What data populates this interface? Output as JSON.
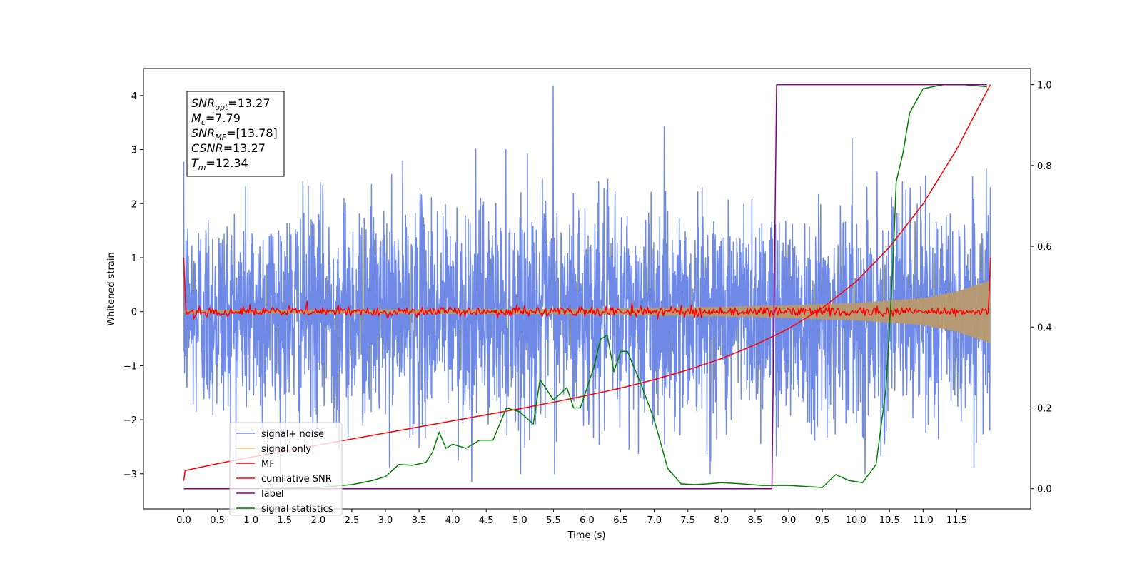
{
  "chart_data": {
    "type": "line",
    "xlabel": "Time (s)",
    "ylabel": "Whitened strain",
    "xlim": [
      -0.6,
      12.6
    ],
    "ylim": [
      -3.65,
      4.5
    ],
    "y2lim": [
      -0.05,
      1.04
    ],
    "x_ticks": [
      0.0,
      0.5,
      1.0,
      1.5,
      2.0,
      2.5,
      3.0,
      3.5,
      4.0,
      4.5,
      5.0,
      5.5,
      6.0,
      6.5,
      7.0,
      7.5,
      8.0,
      8.5,
      9.0,
      9.5,
      10.0,
      10.5,
      11.0,
      11.5
    ],
    "y_ticks": [
      -3,
      -2,
      -1,
      0,
      1,
      2,
      3,
      4
    ],
    "y2_ticks": [
      0.0,
      0.2,
      0.4,
      0.6,
      0.8,
      1.0
    ],
    "legend_position": "lower-left",
    "stats_box": [
      {
        "var": "SNR",
        "sub": "opt",
        "value": "=13.27"
      },
      {
        "var": "M",
        "sub": "c",
        "value": "=7.79"
      },
      {
        "var": "SNR",
        "sub": "MF",
        "value": "=[13.78]"
      },
      {
        "var": "CSNR",
        "sub": "",
        "value": "=13.27"
      },
      {
        "var": "T",
        "sub": "m",
        "value": "=12.34"
      }
    ],
    "series": [
      {
        "name": "signal+ noise",
        "color": "#6f8ae6",
        "axis": "left",
        "kind": "noise",
        "x_range": [
          0.0,
          12.0
        ],
        "std": 1.0,
        "max_peak": 4.18,
        "min_peak": -3.15
      },
      {
        "name": "signal only",
        "color": "#f5c26b",
        "axis": "left",
        "kind": "envelope",
        "x": [
          0.0,
          6.0,
          8.0,
          9.0,
          10.0,
          11.0,
          11.5,
          12.0
        ],
        "upper": [
          0.03,
          0.05,
          0.09,
          0.12,
          0.16,
          0.25,
          0.37,
          0.58
        ]
      },
      {
        "name": "MF",
        "color": "#ff0000",
        "axis": "left",
        "kind": "noise",
        "x_range": [
          0.0,
          12.0
        ],
        "std": 0.045,
        "start_value": 1.0,
        "end_value": 1.0
      },
      {
        "name": "cumilative SNR",
        "color": "#ff0000",
        "axis": "right",
        "x": [
          0.0,
          0.02,
          0.5,
          1.0,
          1.5,
          2.0,
          2.5,
          3.0,
          3.5,
          4.0,
          4.5,
          5.0,
          5.5,
          6.0,
          6.5,
          7.0,
          7.5,
          8.0,
          8.5,
          9.0,
          9.5,
          10.0,
          10.5,
          11.0,
          11.5,
          12.0
        ],
        "values": [
          0.02,
          0.045,
          0.062,
          0.078,
          0.093,
          0.108,
          0.123,
          0.138,
          0.153,
          0.168,
          0.183,
          0.198,
          0.214,
          0.231,
          0.249,
          0.27,
          0.294,
          0.322,
          0.356,
          0.396,
          0.447,
          0.512,
          0.598,
          0.705,
          0.84,
          1.0
        ]
      },
      {
        "name": "label",
        "color": "#800080",
        "axis": "right",
        "x": [
          0.0,
          8.75,
          8.82,
          11.95
        ],
        "values": [
          0.0,
          0.0,
          1.0,
          1.0
        ]
      },
      {
        "name": "signal statistics",
        "color": "#008000",
        "axis": "right",
        "x": [
          0.0,
          1.0,
          1.5,
          2.0,
          2.5,
          2.8,
          3.0,
          3.2,
          3.4,
          3.6,
          3.7,
          3.8,
          3.9,
          4.0,
          4.2,
          4.4,
          4.6,
          4.8,
          5.0,
          5.2,
          5.3,
          5.5,
          5.7,
          5.8,
          5.9,
          6.0,
          6.1,
          6.2,
          6.3,
          6.4,
          6.5,
          6.6,
          6.8,
          7.0,
          7.2,
          7.4,
          7.6,
          7.8,
          8.0,
          8.3,
          8.6,
          9.0,
          9.3,
          9.5,
          9.7,
          9.9,
          10.1,
          10.3,
          10.45,
          10.55,
          10.6,
          10.7,
          10.8,
          10.9,
          11.0,
          11.3,
          11.6,
          11.95
        ],
        "values": [
          0.0,
          0.0,
          0.001,
          0.003,
          0.01,
          0.02,
          0.03,
          0.06,
          0.058,
          0.065,
          0.09,
          0.14,
          0.1,
          0.11,
          0.1,
          0.12,
          0.12,
          0.2,
          0.19,
          0.16,
          0.27,
          0.22,
          0.25,
          0.2,
          0.2,
          0.25,
          0.3,
          0.37,
          0.38,
          0.29,
          0.34,
          0.34,
          0.26,
          0.17,
          0.05,
          0.012,
          0.01,
          0.012,
          0.015,
          0.012,
          0.008,
          0.008,
          0.005,
          0.003,
          0.035,
          0.02,
          0.015,
          0.06,
          0.25,
          0.55,
          0.76,
          0.83,
          0.93,
          0.96,
          0.99,
          1.0,
          1.0,
          0.995
        ]
      }
    ]
  }
}
